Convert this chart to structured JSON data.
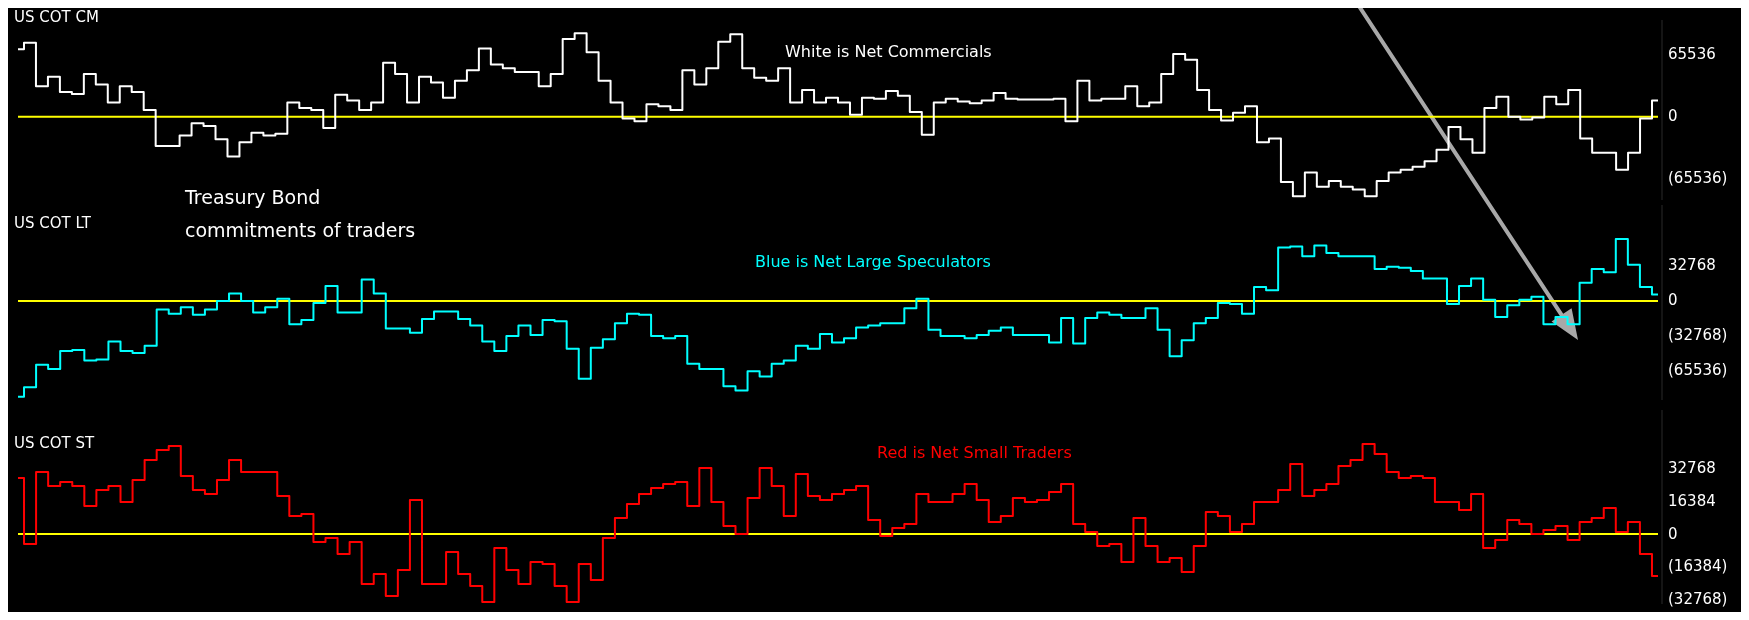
{
  "chart_data": [
    {
      "type": "step",
      "title": "US COT CM",
      "categories": [
        null,
        null,
        null,
        null,
        null,
        null,
        null,
        null,
        null,
        null,
        null,
        null,
        null,
        null,
        null,
        null,
        null,
        null,
        null,
        null,
        null,
        null,
        null,
        null,
        null,
        null,
        null,
        null,
        null,
        null,
        null,
        null,
        null,
        null,
        null,
        null,
        null,
        null,
        null,
        null,
        null,
        null,
        null,
        null,
        null,
        null,
        null,
        null,
        null,
        null,
        null,
        null,
        null,
        null,
        null,
        null,
        null,
        null,
        null,
        null,
        null,
        null,
        null,
        null,
        null,
        null,
        null,
        null,
        null,
        null,
        null,
        null,
        null,
        null,
        null,
        null,
        null,
        null,
        null,
        null,
        null,
        null,
        null,
        null,
        null,
        null,
        null,
        null,
        null,
        null,
        null,
        null,
        null,
        null,
        null,
        null,
        null,
        null,
        null,
        null,
        null,
        null,
        null,
        null,
        null,
        null,
        null,
        null,
        null,
        null,
        null,
        null,
        null,
        null,
        null,
        null,
        null,
        null,
        null,
        null,
        null,
        null,
        null,
        null,
        null,
        null,
        null,
        null,
        null,
        null,
        null,
        null,
        null,
        null,
        null,
        null,
        null,
        null
      ],
      "series": [
        {
          "color": "#ffffff",
          "values": [
            71000,
            78000,
            32000,
            42000,
            26000,
            24000,
            45000,
            34000,
            15000,
            32000,
            26000,
            7000,
            -31000,
            -31000,
            -20000,
            -7000,
            -10000,
            -24000,
            -42000,
            -27000,
            -17000,
            -20000,
            -18000,
            15000,
            9000,
            7000,
            -12000,
            23000,
            17000,
            7000,
            15000,
            57000,
            45000,
            15000,
            42000,
            36000,
            20000,
            38000,
            49000,
            72000,
            55000,
            51000,
            47000,
            47000,
            32000,
            45000,
            82000,
            88000,
            68000,
            38000,
            15000,
            -2000,
            -5000,
            13000,
            11000,
            7000,
            49000,
            34000,
            51000,
            79000,
            87000,
            51000,
            41000,
            38000,
            51000,
            15000,
            28000,
            15000,
            20000,
            15000,
            2000,
            20000,
            19000,
            27000,
            22000,
            5000,
            -19000,
            15000,
            19000,
            16000,
            14000,
            17000,
            25000,
            19000,
            18000,
            18000,
            18000,
            19000,
            -5000,
            38000,
            17000,
            19000,
            19000,
            32000,
            11000,
            15000,
            45000,
            66000,
            60000,
            28000,
            7000,
            -4000,
            4000,
            11000,
            -27000,
            -23000,
            -69000,
            -84000,
            -59000,
            -74000,
            -68000,
            -74000,
            -77000,
            -84000,
            -68000,
            -59000,
            -56000,
            -53000,
            -47000,
            -35000,
            -11000,
            -24000,
            -38000,
            9000,
            21000,
            0,
            -3000,
            -1000,
            21000,
            13000,
            28000,
            -23000,
            -38000,
            -38000,
            -56000,
            -38000,
            -2000,
            17000
          ]
        }
      ],
      "ylim": [
        -88000,
        102000
      ],
      "yticks": [
        65536,
        0,
        {
          "value": -65536,
          "label": "(65536)"
        }
      ],
      "ref_lines": [
        {
          "axis": "y",
          "value": 0,
          "color": "#ffff00"
        }
      ],
      "annotations": [
        "White is Net Commercials",
        "Treasury Bond commitments of traders"
      ]
    },
    {
      "type": "step",
      "title": "US COT LT",
      "categories": [
        null,
        null,
        null,
        null,
        null,
        null,
        null,
        null,
        null,
        null,
        null,
        null,
        null,
        null,
        null,
        null,
        null,
        null,
        null,
        null,
        null,
        null,
        null,
        null,
        null,
        null,
        null,
        null,
        null,
        null,
        null,
        null,
        null,
        null,
        null,
        null,
        null,
        null,
        null,
        null,
        null,
        null,
        null,
        null,
        null,
        null,
        null,
        null,
        null,
        null,
        null,
        null,
        null,
        null,
        null,
        null,
        null,
        null,
        null,
        null,
        null,
        null,
        null,
        null,
        null,
        null,
        null,
        null,
        null,
        null,
        null,
        null,
        null,
        null,
        null,
        null,
        null,
        null,
        null,
        null,
        null,
        null,
        null,
        null,
        null,
        null,
        null,
        null,
        null,
        null,
        null,
        null,
        null,
        null,
        null,
        null,
        null,
        null,
        null,
        null,
        null,
        null,
        null,
        null,
        null,
        null,
        null,
        null,
        null,
        null,
        null,
        null,
        null,
        null,
        null,
        null,
        null,
        null,
        null,
        null,
        null,
        null,
        null,
        null,
        null,
        null,
        null,
        null,
        null,
        null,
        null,
        null,
        null,
        null,
        null,
        null,
        null
      ],
      "series": [
        {
          "color": "#00ffff",
          "values": [
            -90000,
            -81000,
            -60000,
            -64000,
            -47000,
            -46000,
            -56000,
            -55000,
            -38000,
            -47000,
            -49000,
            -42000,
            -8000,
            -12000,
            -6000,
            -13000,
            -8000,
            0,
            7000,
            0,
            -11000,
            -6000,
            2000,
            -22000,
            -18000,
            -2000,
            14000,
            -11000,
            -11000,
            20000,
            7000,
            -26000,
            -26000,
            -30000,
            -17000,
            -10000,
            -10000,
            -17000,
            -23000,
            -38000,
            -47000,
            -33000,
            -23000,
            -32000,
            -18000,
            -19000,
            -45000,
            -73000,
            -44000,
            -36000,
            -21000,
            -12000,
            -13000,
            -33000,
            -35000,
            -33000,
            -59000,
            -64000,
            -64000,
            -80000,
            -84000,
            -66000,
            -71000,
            -59000,
            -56000,
            -42000,
            -45000,
            -31000,
            -39000,
            -35000,
            -25000,
            -23000,
            -21000,
            -21000,
            -7000,
            2000,
            -27000,
            -33000,
            -33000,
            -35000,
            -32000,
            -28000,
            -25000,
            -32000,
            -32000,
            -32000,
            -39000,
            -16000,
            -40000,
            -16000,
            -11000,
            -13000,
            -16000,
            -16000,
            -7000,
            -27000,
            -52000,
            -37000,
            -21000,
            -16000,
            -2000,
            -3000,
            -12000,
            13000,
            10000,
            50000,
            51000,
            42000,
            52000,
            45000,
            42000,
            42000,
            42000,
            30000,
            32000,
            31000,
            28000,
            21000,
            21000,
            -3000,
            14000,
            21000,
            1000,
            -15000,
            -4000,
            1000,
            4000,
            -22000,
            -15000,
            -22000,
            17000,
            30000,
            27000,
            58000,
            34000,
            13000,
            6000
          ]
        }
      ],
      "ylim": [
        -93000,
        90000
      ],
      "yticks": [
        32768,
        0,
        {
          "value": -32768,
          "label": "(32768)"
        },
        {
          "value": -65536,
          "label": "(65536)"
        }
      ],
      "ref_lines": [
        {
          "axis": "y",
          "value": 0,
          "color": "#ffff00"
        }
      ],
      "annotations": [
        "Blue is Net Large Speculators"
      ]
    },
    {
      "type": "step",
      "title": "US COT ST",
      "categories": [
        null,
        null,
        null,
        null,
        null,
        null,
        null,
        null,
        null,
        null,
        null,
        null,
        null,
        null,
        null,
        null,
        null,
        null,
        null,
        null,
        null,
        null,
        null,
        null,
        null,
        null,
        null,
        null,
        null,
        null,
        null,
        null,
        null,
        null,
        null,
        null,
        null,
        null,
        null,
        null,
        null,
        null,
        null,
        null,
        null,
        null,
        null,
        null,
        null,
        null,
        null,
        null,
        null,
        null,
        null,
        null,
        null,
        null,
        null,
        null,
        null,
        null,
        null,
        null,
        null,
        null,
        null,
        null,
        null,
        null,
        null,
        null,
        null,
        null,
        null,
        null,
        null,
        null,
        null,
        null,
        null,
        null,
        null,
        null,
        null,
        null,
        null,
        null,
        null,
        null,
        null,
        null,
        null,
        null,
        null,
        null,
        null,
        null,
        null,
        null,
        null,
        null,
        null,
        null,
        null,
        null,
        null,
        null,
        null,
        null,
        null,
        null,
        null,
        null,
        null,
        null,
        null,
        null,
        null,
        null,
        null,
        null,
        null,
        null,
        null,
        null,
        null,
        null,
        null,
        null,
        null,
        null,
        null,
        null,
        null,
        null,
        null
      ],
      "series": [
        {
          "color": "#ff0000",
          "values": [
            28000,
            -5000,
            31000,
            24000,
            26000,
            24000,
            14000,
            22000,
            24000,
            16000,
            27000,
            37000,
            42000,
            44000,
            29000,
            22000,
            20000,
            27000,
            37000,
            31000,
            31000,
            31000,
            19000,
            9000,
            10000,
            -4000,
            -2000,
            -10000,
            -4000,
            -25000,
            -20000,
            -31000,
            -18000,
            17000,
            -25000,
            -25000,
            -9000,
            -20000,
            -26000,
            -34000,
            -7000,
            -18000,
            -25000,
            -14000,
            -15000,
            -26000,
            -34000,
            -15000,
            -23000,
            -2000,
            8000,
            15000,
            20000,
            23000,
            25000,
            26000,
            14000,
            33000,
            16000,
            4000,
            0,
            18000,
            33000,
            24000,
            9000,
            30000,
            19000,
            17000,
            20000,
            22000,
            24000,
            7000,
            -1000,
            3000,
            5000,
            20000,
            16000,
            16000,
            20000,
            25000,
            17000,
            6000,
            9000,
            18000,
            16000,
            17000,
            21000,
            25000,
            5000,
            1000,
            -6000,
            -5000,
            -14000,
            8000,
            -6000,
            -14000,
            -12000,
            -19000,
            -6000,
            11000,
            9000,
            1000,
            5000,
            16000,
            16000,
            22000,
            35000,
            19000,
            22000,
            25000,
            34000,
            37000,
            45000,
            40000,
            31000,
            28000,
            29000,
            28000,
            16000,
            16000,
            12000,
            20000,
            -7000,
            -3000,
            7000,
            5000,
            0,
            2000,
            4000,
            -3000,
            6000,
            8000,
            13000,
            1000,
            6000,
            -10000,
            -21000
          ]
        }
      ],
      "ylim": [
        -35000,
        62000
      ],
      "yticks": [
        32768,
        16384,
        0,
        {
          "value": -16384,
          "label": "(16384)"
        },
        {
          "value": -32768,
          "label": "(32768)"
        }
      ],
      "ref_lines": [
        {
          "axis": "y",
          "value": 0,
          "color": "#ffff00"
        }
      ],
      "annotations": [
        "Red is Net Small Traders"
      ]
    }
  ]
}
